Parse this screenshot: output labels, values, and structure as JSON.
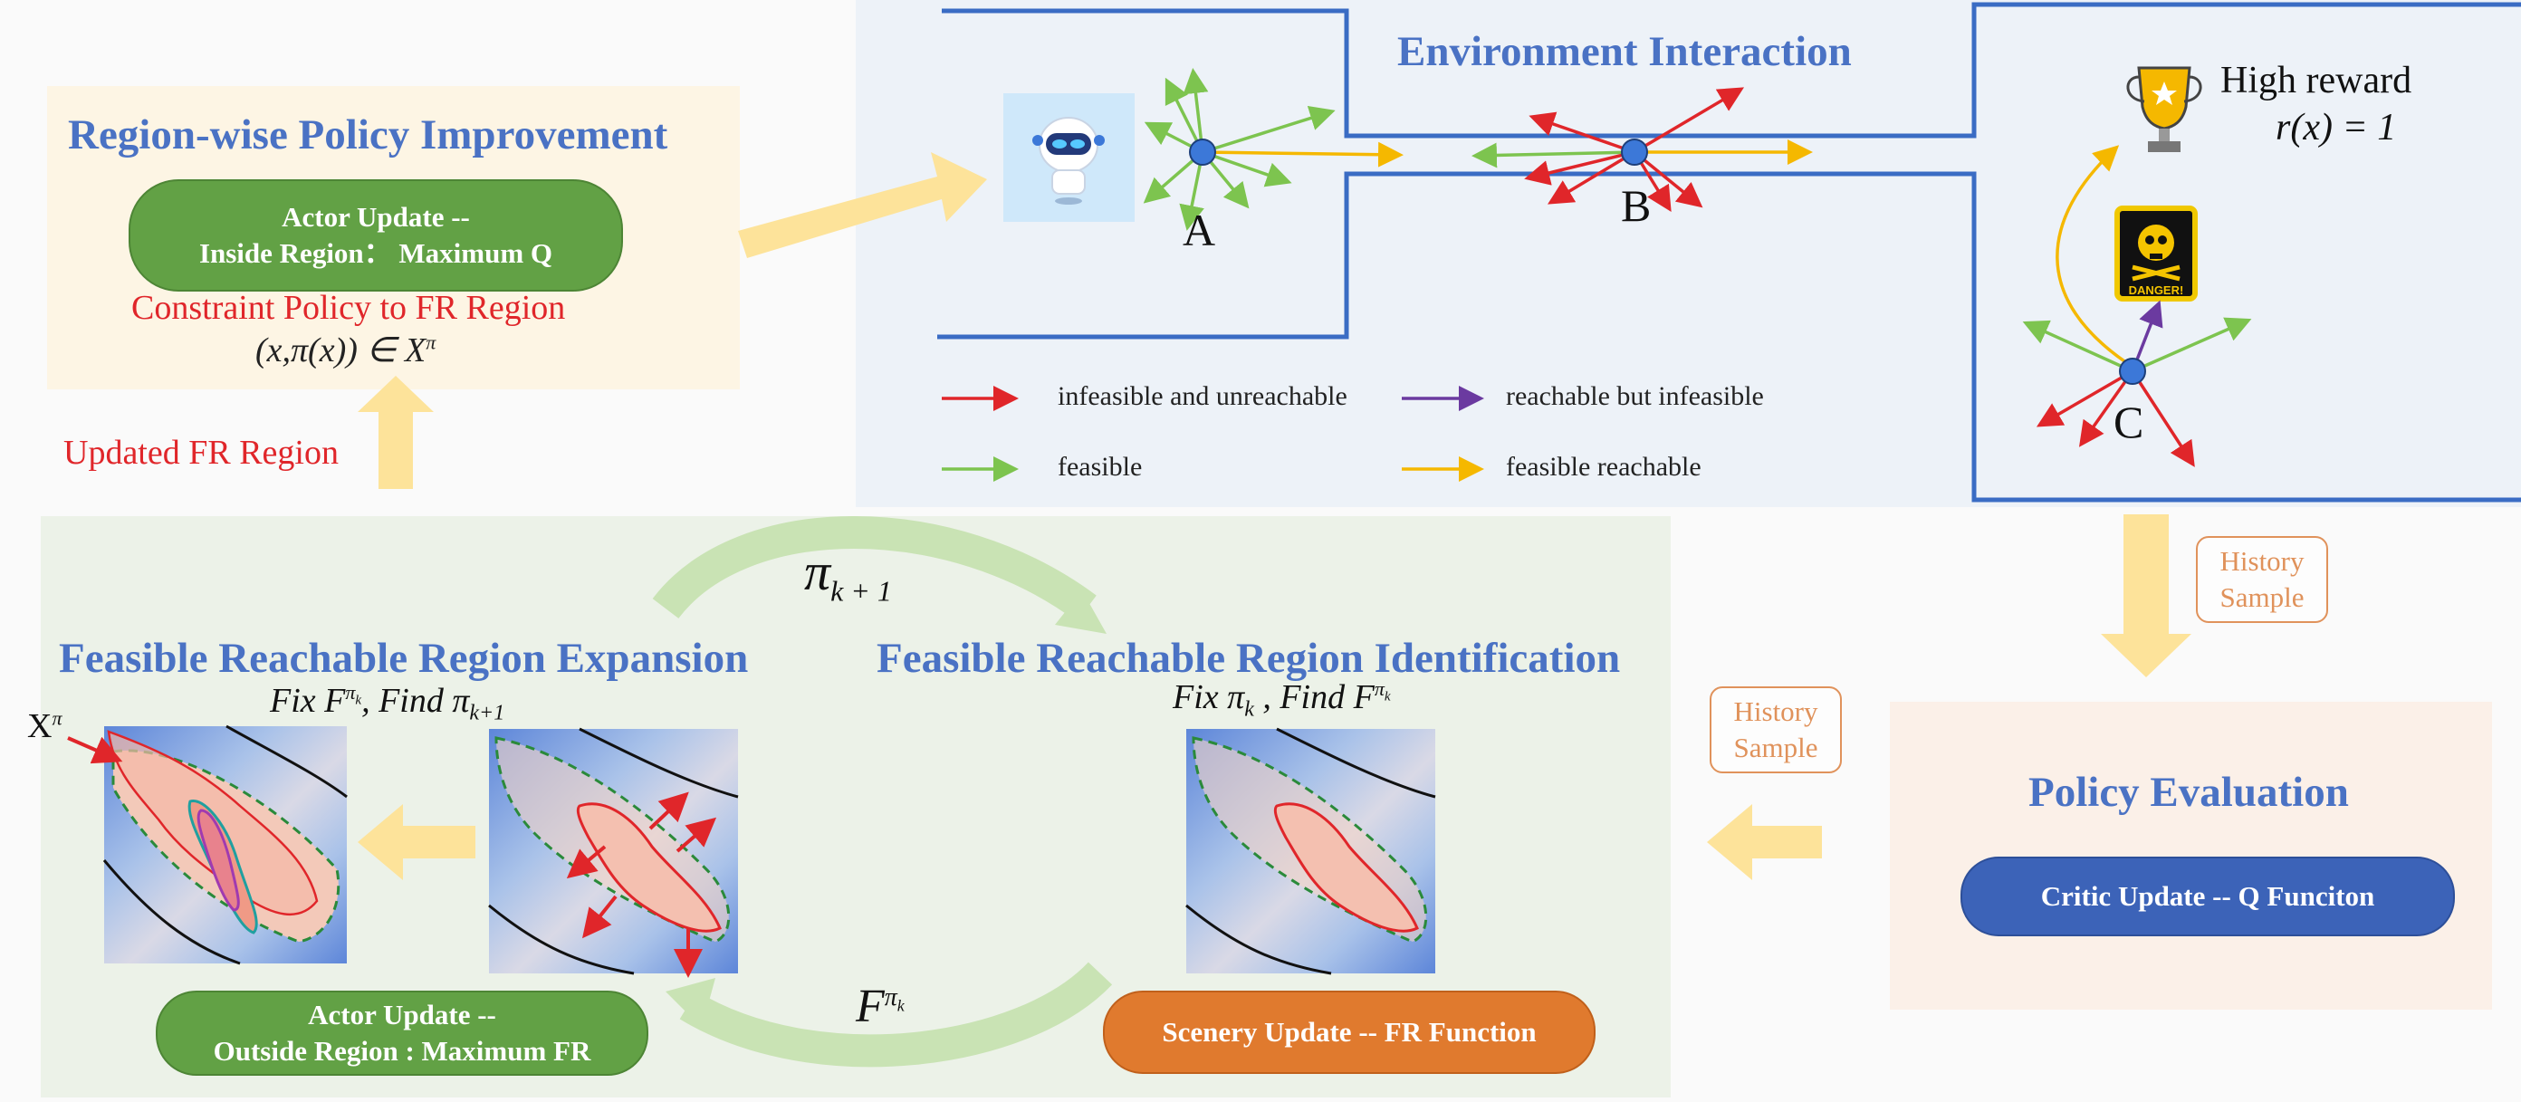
{
  "colors": {
    "title_blue": "#4a72c4",
    "red": "#e0262a",
    "green_pill": "#62a145",
    "orange_pill": "#e07a2e",
    "blue_pill": "#3c63b8",
    "tag_orange": "#e0925b",
    "arrow_yellow": "#fde39a"
  },
  "region_policy": {
    "title": "Region-wise Policy Improvement",
    "actor_line1": "Actor Update --",
    "actor_line2": "Inside Region： Maximum Q",
    "constraint": "Constraint Policy to FR Region",
    "formula": "(x,π(x))  ∈  X",
    "formula_sup": "π"
  },
  "updated_fr": "Updated FR Region",
  "environment": {
    "title": "Environment Interaction",
    "label_a": "A",
    "label_b": "B",
    "label_c": "C",
    "reward_title": "High reward",
    "reward_formula": "r(x) = 1",
    "danger_text": "DANGER!",
    "legend": {
      "infeasible_unreachable": "infeasible and unreachable",
      "reachable_infeasible": "reachable but infeasible",
      "feasible": "feasible",
      "feasible_reachable": "feasible reachable"
    }
  },
  "history_sample_1": {
    "line1": "History",
    "line2": "Sample"
  },
  "history_sample_2": {
    "line1": "History",
    "line2": "Sample"
  },
  "policy_eval": {
    "title": "Policy Evaluation",
    "critic": "Critic Update -- Q Funciton"
  },
  "expansion": {
    "title": "Feasible Reachable Region Expansion",
    "subtitle_pre": "Fix F",
    "subtitle_sup": "π",
    "subtitle_sup_sub": "k",
    "subtitle_mid": ", Find π",
    "subtitle_sub": "k+1",
    "actor_line1": "Actor Update --",
    "actor_line2": "Outside Region :   Maximum FR",
    "x_label": "X",
    "x_sup": "π"
  },
  "identification": {
    "title": "Feasible Reachable Region Identification",
    "subtitle_pre": "Fix π",
    "subtitle_sub": "k",
    "subtitle_mid": " , Find F",
    "subtitle_sup": "π",
    "subtitle_sup_sub": "k",
    "scenery": "Scenery Update -- FR Function"
  },
  "loop": {
    "pi_label": "π",
    "pi_sub": "k + 1",
    "f_label": "F",
    "f_sup": "π",
    "f_sup_sub": "k"
  }
}
